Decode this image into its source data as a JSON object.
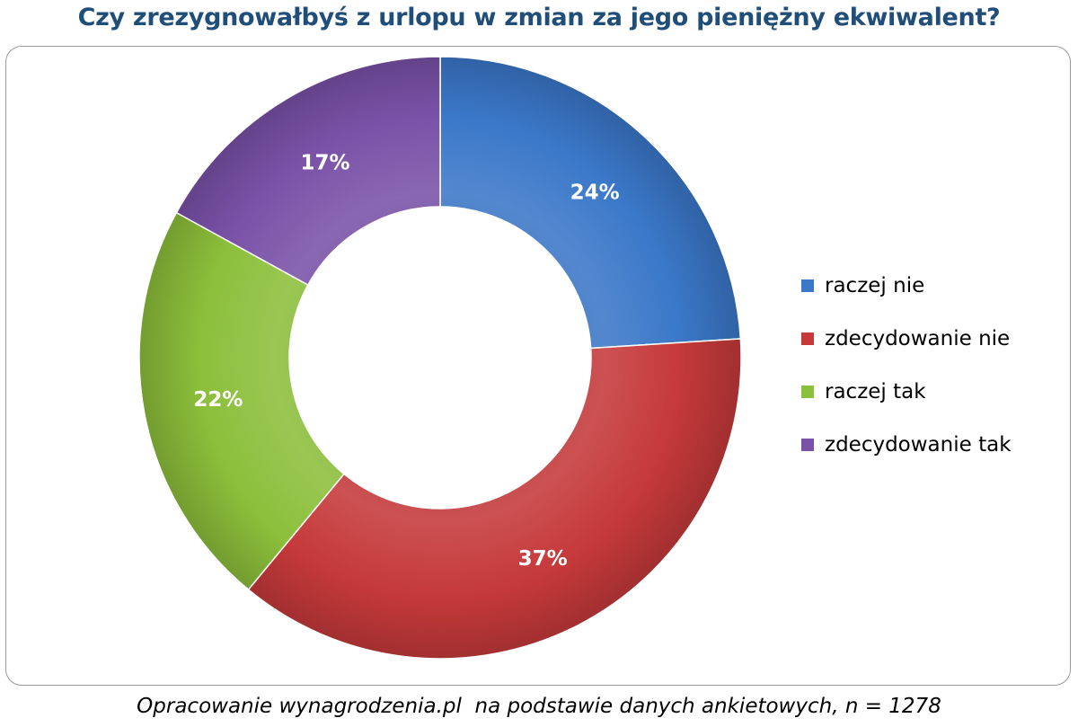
{
  "chart_data": {
    "type": "pie",
    "donut": true,
    "title": "Czy zrezygnowałbyś z urlopu w zmian za jego pieniężny ekwiwalent?",
    "categories": [
      "raczej nie",
      "zdecydowanie nie",
      "raczej tak",
      "zdecydowanie tak"
    ],
    "values": [
      24,
      37,
      22,
      17
    ],
    "labels": [
      "24%",
      "37%",
      "22%",
      "17%"
    ],
    "colors": [
      "#3b78c9",
      "#c5393a",
      "#8cbf3b",
      "#7a52a8"
    ],
    "legend_position": "right"
  },
  "caption": "Opracowanie wynagrodzenia.pl  na podstawie danych ankietowych, n = 1278"
}
